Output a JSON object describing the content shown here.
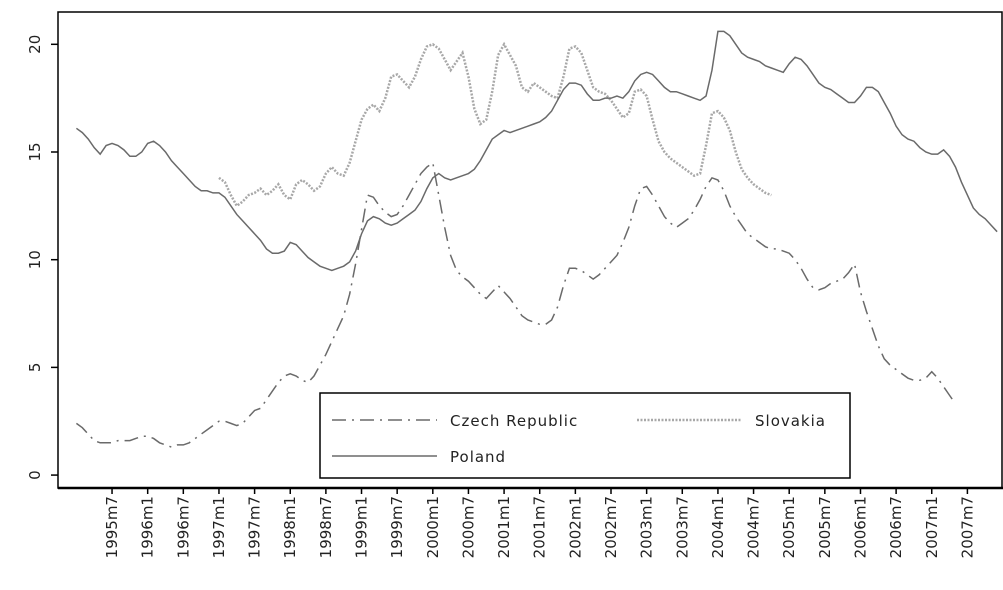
{
  "chart_data": {
    "type": "line",
    "categories": [
      null,
      null,
      null,
      null,
      null,
      null,
      "1995m7",
      null,
      null,
      null,
      null,
      null,
      "1996m1",
      null,
      null,
      null,
      null,
      null,
      "1996m7",
      null,
      null,
      null,
      null,
      null,
      "1997m1",
      null,
      null,
      null,
      null,
      null,
      "1997m7",
      null,
      null,
      null,
      null,
      null,
      "1998m1",
      null,
      null,
      null,
      null,
      null,
      "1998m7",
      null,
      null,
      null,
      null,
      null,
      "1999m1",
      null,
      null,
      null,
      null,
      null,
      "1999m7",
      null,
      null,
      null,
      null,
      null,
      "2000m1",
      null,
      null,
      null,
      null,
      null,
      "2000m7",
      null,
      null,
      null,
      null,
      null,
      "2001m1",
      null,
      null,
      null,
      null,
      null,
      "2001m7",
      null,
      null,
      null,
      null,
      null,
      "2002m1",
      null,
      null,
      null,
      null,
      null,
      "2002m7",
      null,
      null,
      null,
      null,
      null,
      "2003m1",
      null,
      null,
      null,
      null,
      null,
      "2003m7",
      null,
      null,
      null,
      null,
      null,
      "2004m1",
      null,
      null,
      null,
      null,
      null,
      "2004m7",
      null,
      null,
      null,
      null,
      null,
      "2005m1",
      null,
      null,
      null,
      null,
      null,
      "2005m7",
      null,
      null,
      null,
      null,
      null,
      "2006m1",
      null,
      null,
      null,
      null,
      null,
      "2006m7",
      null,
      null,
      null,
      null,
      null,
      "2007m1",
      null,
      null,
      null,
      null,
      null,
      "2007m7",
      null,
      null,
      null,
      null,
      null
    ],
    "series": [
      {
        "name": "Czech Republic",
        "color": "#6a6a6a",
        "linestyle": "dashdot",
        "values": [
          2.4,
          2.2,
          1.9,
          1.6,
          1.5,
          1.5,
          1.5,
          1.6,
          1.6,
          1.6,
          1.7,
          1.8,
          1.8,
          1.7,
          1.5,
          1.4,
          1.3,
          1.4,
          1.4,
          1.5,
          1.7,
          1.9,
          2.1,
          2.3,
          2.5,
          2.5,
          2.4,
          2.3,
          2.4,
          2.7,
          3.0,
          3.1,
          3.5,
          3.9,
          4.3,
          4.6,
          4.7,
          4.6,
          4.4,
          4.3,
          4.6,
          5.1,
          5.6,
          6.2,
          6.8,
          7.4,
          8.4,
          9.8,
          11.4,
          13.0,
          12.9,
          12.5,
          12.2,
          12.0,
          12.1,
          12.5,
          13.0,
          13.5,
          14.0,
          14.3,
          14.5,
          13.0,
          11.5,
          10.2,
          9.5,
          9.2,
          9.0,
          8.7,
          8.4,
          8.2,
          8.5,
          8.8,
          8.5,
          8.2,
          7.8,
          7.4,
          7.2,
          7.1,
          7.0,
          7.0,
          7.2,
          7.8,
          8.8,
          9.6,
          9.6,
          9.5,
          9.3,
          9.1,
          9.3,
          9.6,
          9.9,
          10.2,
          10.8,
          11.5,
          12.5,
          13.3,
          13.4,
          13.0,
          12.5,
          12.0,
          11.7,
          11.5,
          11.7,
          11.9,
          12.3,
          12.8,
          13.4,
          13.8,
          13.7,
          13.2,
          12.5,
          12.0,
          11.6,
          11.2,
          11.0,
          10.8,
          10.6,
          10.5,
          10.5,
          10.4,
          10.3,
          10.0,
          9.6,
          9.1,
          8.7,
          8.6,
          8.7,
          8.9,
          9.0,
          9.1,
          9.4,
          9.8,
          8.5,
          7.6,
          6.8,
          6.0,
          5.4,
          5.1,
          4.9,
          4.7,
          4.5,
          4.4,
          4.4,
          4.5,
          4.8,
          4.5,
          4.1,
          3.7,
          3.3,
          null,
          null,
          null,
          null,
          null,
          null,
          null
        ]
      },
      {
        "name": "Slovakia",
        "color": "#a8a8a8",
        "linestyle": "dotted",
        "values": [
          null,
          null,
          null,
          null,
          null,
          null,
          null,
          null,
          null,
          null,
          null,
          null,
          null,
          null,
          null,
          null,
          null,
          null,
          null,
          null,
          null,
          null,
          null,
          null,
          13.8,
          13.6,
          13.0,
          12.5,
          12.7,
          13.0,
          13.1,
          13.3,
          13.0,
          13.2,
          13.5,
          13.0,
          12.8,
          13.5,
          13.7,
          13.5,
          13.2,
          13.4,
          14.0,
          14.3,
          14.0,
          13.9,
          14.5,
          15.5,
          16.5,
          17.0,
          17.2,
          16.9,
          17.5,
          18.5,
          18.6,
          18.3,
          18.0,
          18.5,
          19.3,
          19.9,
          20.0,
          19.8,
          19.3,
          18.8,
          19.2,
          19.6,
          18.5,
          17.0,
          16.3,
          16.5,
          17.8,
          19.5,
          20.0,
          19.5,
          19.0,
          18.0,
          17.8,
          18.2,
          18.0,
          17.8,
          17.6,
          17.5,
          18.5,
          19.8,
          19.9,
          19.6,
          18.8,
          18.0,
          17.8,
          17.7,
          17.4,
          17.0,
          16.6,
          16.8,
          17.8,
          17.9,
          17.6,
          16.5,
          15.5,
          15.0,
          14.7,
          14.5,
          14.3,
          14.1,
          13.9,
          14.0,
          15.3,
          16.8,
          16.9,
          16.6,
          16.0,
          15.0,
          14.2,
          13.8,
          13.5,
          13.3,
          13.1,
          13.0,
          null,
          null,
          null,
          null,
          null,
          null,
          null,
          null,
          null,
          null,
          null,
          null,
          null,
          null,
          null,
          null,
          null,
          null,
          null,
          null,
          null,
          null,
          null,
          null,
          null,
          null,
          null,
          null,
          null,
          null,
          null,
          null,
          null,
          null,
          null,
          null,
          null,
          null
        ]
      },
      {
        "name": "Poland",
        "color": "#6a6a6a",
        "linestyle": "solid",
        "values": [
          16.1,
          15.9,
          15.6,
          15.2,
          14.9,
          15.3,
          15.4,
          15.3,
          15.1,
          14.8,
          14.8,
          15.0,
          15.4,
          15.5,
          15.3,
          15.0,
          14.6,
          14.3,
          14.0,
          13.7,
          13.4,
          13.2,
          13.2,
          13.1,
          13.1,
          12.9,
          12.5,
          12.1,
          11.8,
          11.5,
          11.2,
          10.9,
          10.5,
          10.3,
          10.3,
          10.4,
          10.8,
          10.7,
          10.4,
          10.1,
          9.9,
          9.7,
          9.6,
          9.5,
          9.6,
          9.7,
          9.9,
          10.4,
          11.2,
          11.8,
          12.0,
          11.9,
          11.7,
          11.6,
          11.7,
          11.9,
          12.1,
          12.3,
          12.7,
          13.3,
          13.8,
          14.0,
          13.8,
          13.7,
          13.8,
          13.9,
          14.0,
          14.2,
          14.6,
          15.1,
          15.6,
          15.8,
          16.0,
          15.9,
          16.0,
          16.1,
          16.2,
          16.3,
          16.4,
          16.6,
          16.9,
          17.4,
          17.9,
          18.2,
          18.2,
          18.1,
          17.7,
          17.4,
          17.4,
          17.5,
          17.5,
          17.6,
          17.5,
          17.8,
          18.3,
          18.6,
          18.7,
          18.6,
          18.3,
          18.0,
          17.8,
          17.8,
          17.7,
          17.6,
          17.5,
          17.4,
          17.6,
          18.8,
          20.6,
          20.6,
          20.4,
          20.0,
          19.6,
          19.4,
          19.3,
          19.2,
          19.0,
          18.9,
          18.8,
          18.7,
          19.1,
          19.4,
          19.3,
          19.0,
          18.6,
          18.2,
          18.0,
          17.9,
          17.7,
          17.5,
          17.3,
          17.3,
          17.6,
          18.0,
          18.0,
          17.8,
          17.3,
          16.8,
          16.2,
          15.8,
          15.6,
          15.5,
          15.2,
          15.0,
          14.9,
          14.9,
          15.1,
          14.8,
          14.3,
          13.6,
          13.0,
          12.4,
          12.1,
          11.9,
          11.6,
          11.3
        ]
      }
    ],
    "ylim": [
      -0.6,
      21.5
    ],
    "yticks": [
      0,
      5,
      10,
      15,
      20
    ],
    "legend": "bottom"
  }
}
